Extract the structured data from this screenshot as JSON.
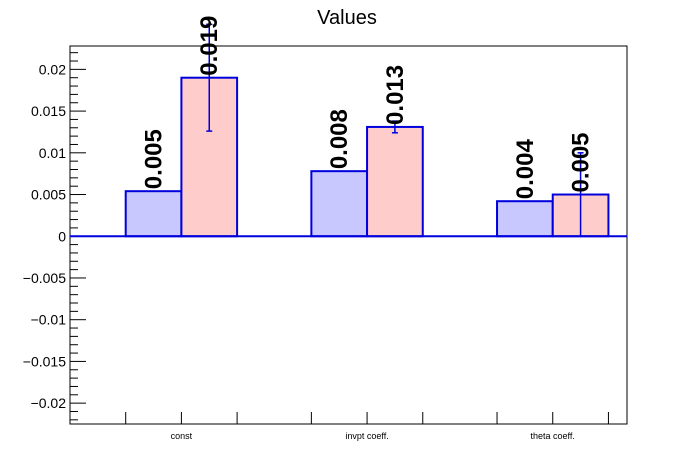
{
  "chart_data": {
    "type": "bar",
    "title": "Values",
    "xlabel": "",
    "ylabel": "",
    "categories": [
      "const",
      "invpt coeff.",
      "theta coeff."
    ],
    "series": [
      {
        "values": [
          0.0054,
          0.0078,
          0.0042
        ],
        "labels": [
          "0.005",
          "0.008",
          "0.004"
        ],
        "color": "#c8c8ff"
      },
      {
        "values": [
          0.019,
          0.0131,
          0.005
        ],
        "labels": [
          "0.019",
          "0.013",
          "0.005"
        ],
        "errors": [
          0.0064,
          0.0007,
          0.005
        ],
        "color": "#ffcccc"
      }
    ],
    "edge_color": "#0000dd",
    "ylim": [
      -0.0225,
      0.0228
    ],
    "yticks": [
      0.02,
      0.015,
      0.01,
      0.005,
      0,
      -0.005,
      -0.01,
      -0.015,
      -0.02
    ],
    "ytick_labels": [
      "0.02",
      "0.015",
      "0.01",
      "0.005",
      "0",
      "−0.005",
      "−0.01",
      "−0.015",
      "−0.02"
    ],
    "grid": false,
    "legend": "none"
  }
}
